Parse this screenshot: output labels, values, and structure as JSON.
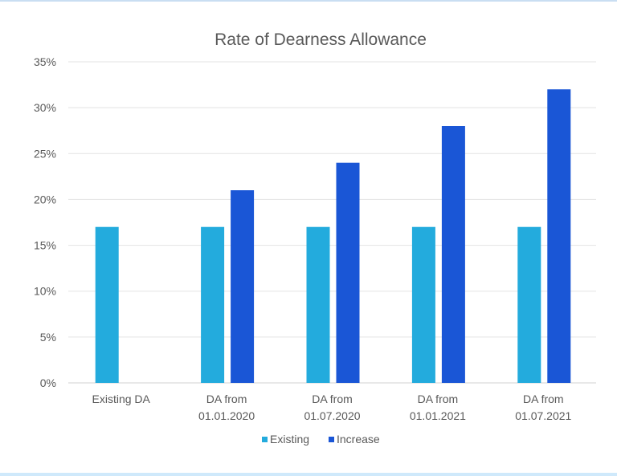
{
  "chart_data": {
    "type": "bar",
    "title": "Rate of Dearness Allowance",
    "categories": [
      [
        "Existing DA"
      ],
      [
        "DA from",
        "01.01.2020"
      ],
      [
        "DA from",
        "01.07.2020"
      ],
      [
        "DA from",
        "01.01.2021"
      ],
      [
        "DA from",
        "01.07.2021"
      ]
    ],
    "series": [
      {
        "name": "Existing",
        "color": "#23ABDD",
        "values": [
          17,
          17,
          17,
          17,
          17
        ]
      },
      {
        "name": "Increase",
        "color": "#1A56D6",
        "values": [
          null,
          21,
          24,
          28,
          32
        ]
      }
    ],
    "ylim": [
      0,
      35
    ],
    "yticks": [
      "0%",
      "5%",
      "10%",
      "15%",
      "20%",
      "25%",
      "30%",
      "35%"
    ],
    "ytick_values": [
      0,
      5,
      10,
      15,
      20,
      25,
      30,
      35
    ],
    "grid": true,
    "legend": "bottom",
    "xlabel": "",
    "ylabel": ""
  }
}
